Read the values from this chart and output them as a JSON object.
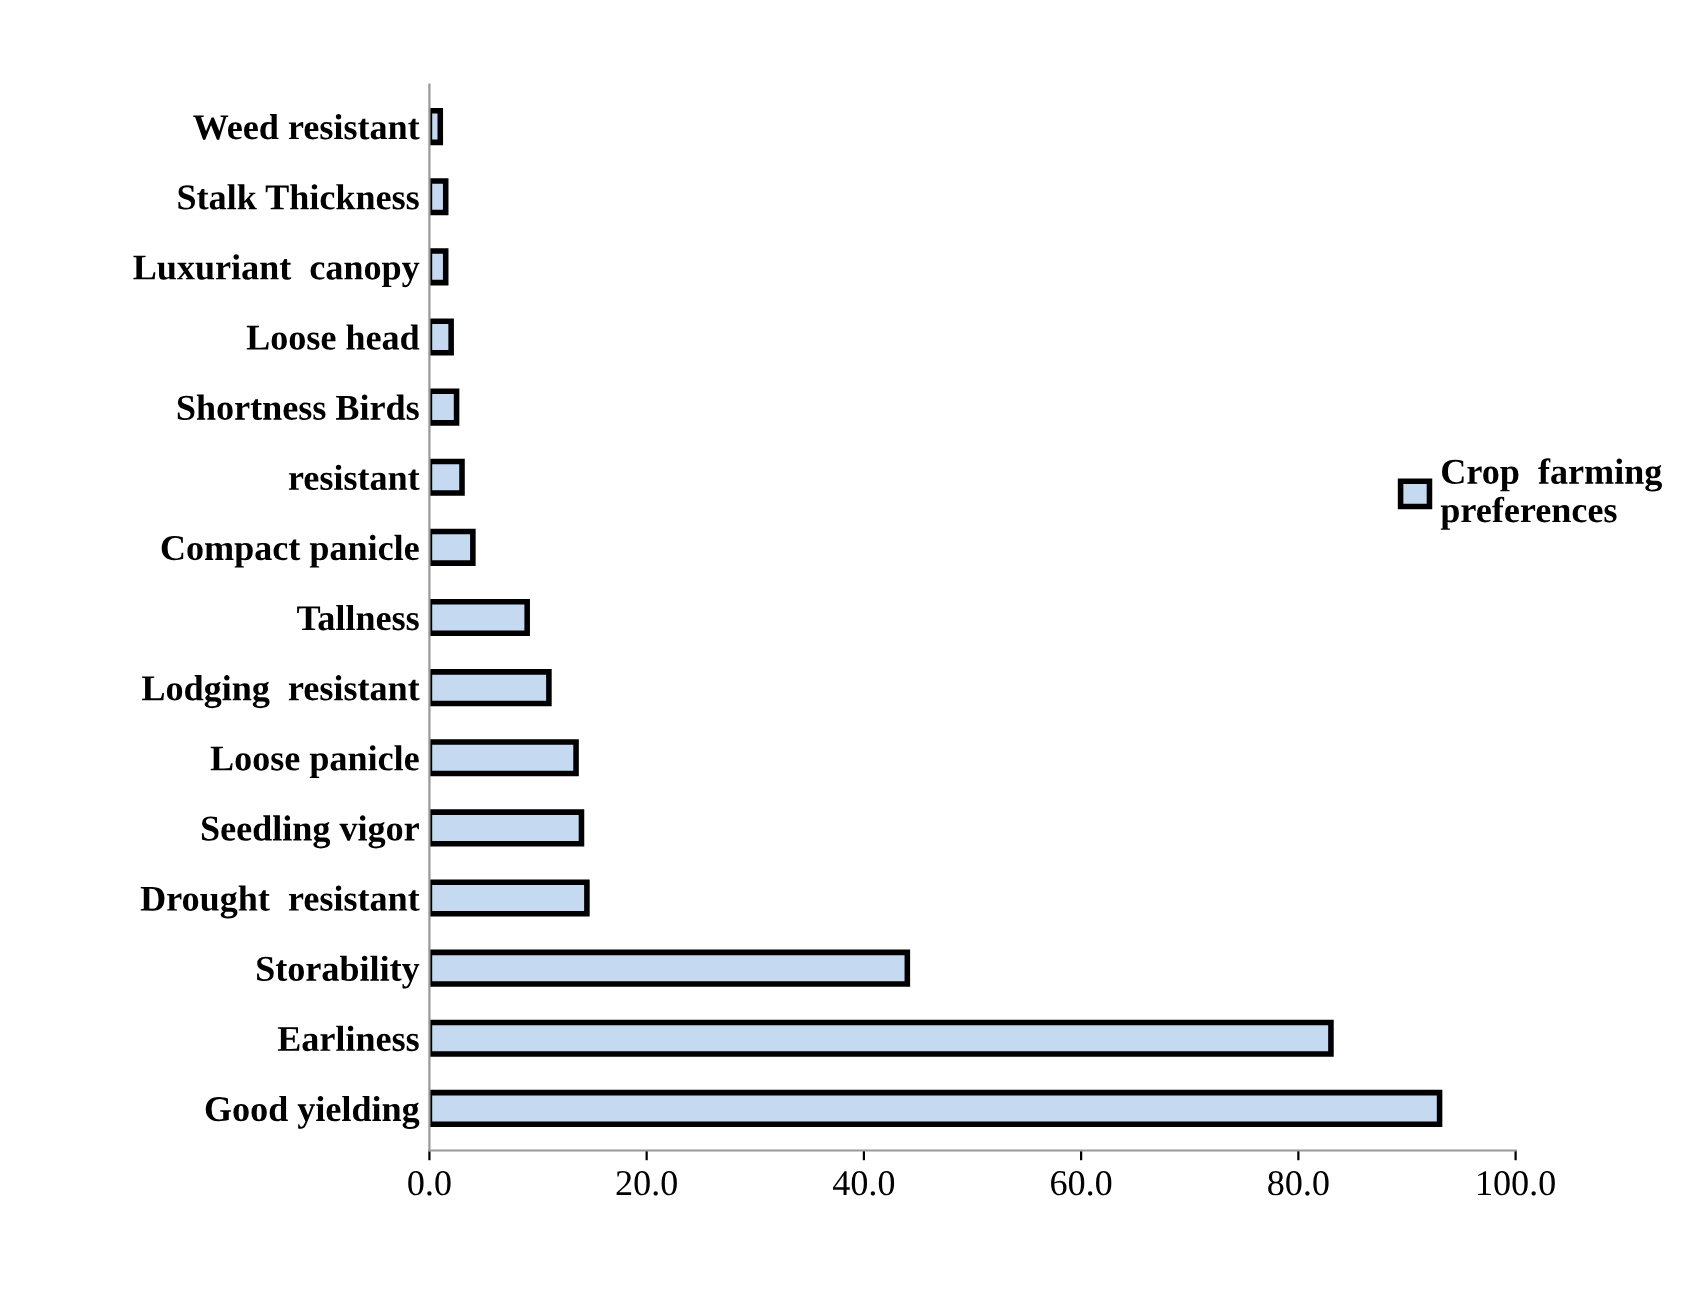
{
  "chart_data": {
    "type": "bar",
    "orientation": "horizontal",
    "categories": [
      "Weed resistant",
      "Stalk Thickness",
      "Luxuriant  canopy",
      "Loose head",
      "Shortness Birds",
      "resistant",
      "Compact panicle",
      "Tallness",
      "Lodging  resistant",
      "Loose panicle",
      "Seedling vigor",
      "Drought  resistant",
      "Storability",
      "Earliness",
      "Good yielding"
    ],
    "series": [
      {
        "name": "Crop  farming preferences",
        "color": "#c5d9f1",
        "values": [
          1,
          1.5,
          1.5,
          2,
          2.5,
          3,
          4,
          9,
          11,
          13.5,
          14,
          14.5,
          44,
          83,
          93
        ]
      }
    ],
    "xlim": [
      0,
      100
    ],
    "xticks": [
      {
        "value": 0,
        "label": "0.0"
      },
      {
        "value": 20,
        "label": "20.0"
      },
      {
        "value": 40,
        "label": "40.0"
      },
      {
        "value": 60,
        "label": "60.0"
      },
      {
        "value": 80,
        "label": "80.0"
      },
      {
        "value": 100,
        "label": "100.0"
      }
    ],
    "grid": false,
    "legend": "right"
  }
}
